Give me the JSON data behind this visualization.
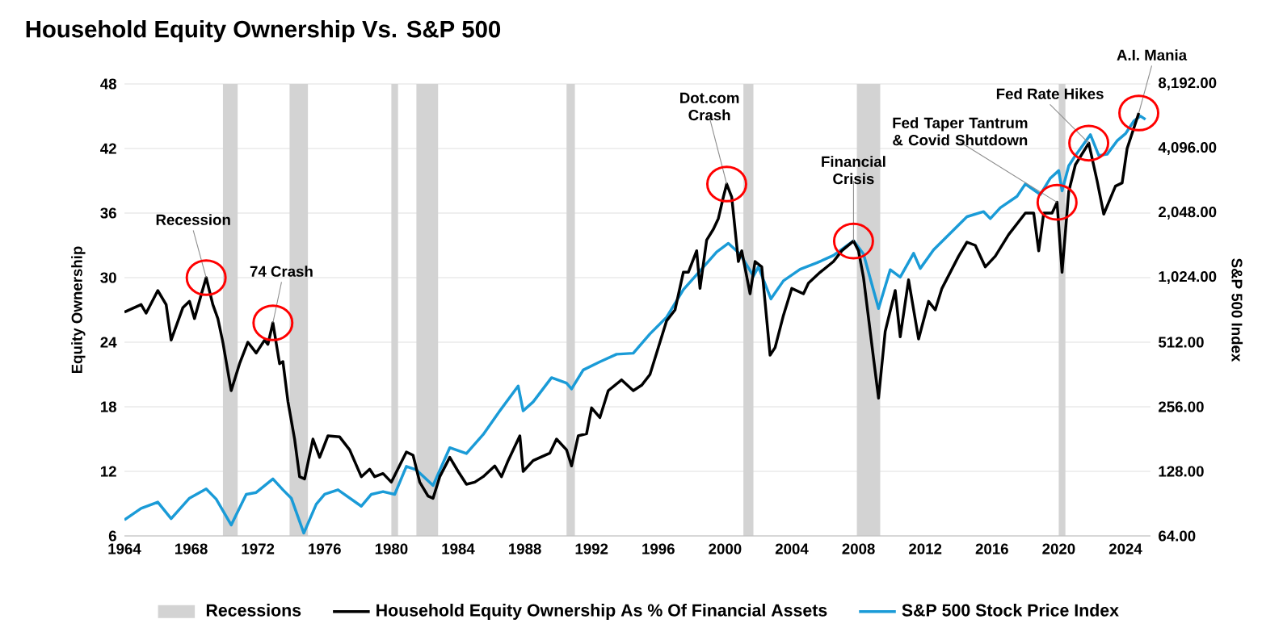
{
  "chart_data": {
    "type": "line",
    "title": "Household Equity Ownership Vs. S&P 500",
    "ylabel": "Equity Ownership",
    "y2label": "S&P 500 Index",
    "xlim": [
      1964,
      2025.5
    ],
    "xticks": [
      1964,
      1968,
      1972,
      1976,
      1980,
      1984,
      1988,
      1992,
      1996,
      2000,
      2004,
      2008,
      2012,
      2016,
      2020,
      2024
    ],
    "ylim": [
      6,
      48
    ],
    "yticks": [
      6,
      12,
      18,
      24,
      30,
      36,
      42,
      48
    ],
    "y2lim": [
      64,
      8192
    ],
    "y2ticks": [
      {
        "value": 64,
        "label": "64.00"
      },
      {
        "value": 128,
        "label": "128.00"
      },
      {
        "value": 256,
        "label": "256.00"
      },
      {
        "value": 512,
        "label": "512.00"
      },
      {
        "value": 1024,
        "label": "1,024.00"
      },
      {
        "value": 2048,
        "label": "2,048.00"
      },
      {
        "value": 4096,
        "label": "4,096.00"
      },
      {
        "value": 8192,
        "label": "8,192.00"
      }
    ],
    "log": "y2",
    "grid": "y",
    "legend": "bottom",
    "bands": [
      {
        "axis": "x",
        "from": 1969.9,
        "to": 1970.8,
        "label": "Recessions",
        "color": "#d3d3d3"
      },
      {
        "axis": "x",
        "from": 1973.9,
        "to": 1975.0,
        "color": "#d3d3d3"
      },
      {
        "axis": "x",
        "from": 1980.0,
        "to": 1980.4,
        "color": "#d3d3d3"
      },
      {
        "axis": "x",
        "from": 1981.5,
        "to": 1982.8,
        "color": "#d3d3d3"
      },
      {
        "axis": "x",
        "from": 1990.5,
        "to": 1991.0,
        "color": "#d3d3d3"
      },
      {
        "axis": "x",
        "from": 2001.1,
        "to": 2001.7,
        "color": "#d3d3d3"
      },
      {
        "axis": "x",
        "from": 2007.9,
        "to": 2009.3,
        "color": "#d3d3d3"
      },
      {
        "axis": "x",
        "from": 2020.0,
        "to": 2020.4,
        "color": "#d3d3d3"
      }
    ],
    "annotations": [
      {
        "text": "Recession",
        "x": 1968.9,
        "y": 30.0
      },
      {
        "text": "74 Crash",
        "x": 1972.9,
        "y": 25.8
      },
      {
        "text": "Dot.com Crash",
        "x": 2000.1,
        "y": 38.7
      },
      {
        "text": "Financial Crisis",
        "x": 2007.7,
        "y": 33.4
      },
      {
        "text": "Fed Taper Tantrum & Covid Shutdown",
        "x": 2019.9,
        "y": 37.0
      },
      {
        "text": "Fed Rate Hikes",
        "x": 2021.8,
        "y": 42.5
      },
      {
        "text": "A.I. Mania",
        "x": 2024.8,
        "y": 45.3
      }
    ],
    "series": [
      {
        "name": "S&P 500 Stock Price Index",
        "color": "#1a9bd7",
        "axis": "y2",
        "x": [
          1964.0,
          1965.0,
          1966.0,
          1966.8,
          1967.9,
          1968.9,
          1969.5,
          1970.4,
          1971.3,
          1971.9,
          1972.9,
          1973.5,
          1974.0,
          1974.75,
          1975.5,
          1976.0,
          1976.8,
          1978.2,
          1978.8,
          1979.5,
          1980.2,
          1980.9,
          1981.5,
          1982.5,
          1983.5,
          1984.5,
          1985.5,
          1986.5,
          1987.6,
          1987.9,
          1988.5,
          1989.6,
          1990.5,
          1990.8,
          1991.5,
          1992.5,
          1993.5,
          1994.5,
          1995.5,
          1996.5,
          1997.5,
          1998.5,
          1999.5,
          2000.2,
          2000.9,
          2001.7,
          2002.0,
          2002.75,
          2003.5,
          2004.5,
          2005.5,
          2006.5,
          2007.7,
          2008.3,
          2009.2,
          2009.9,
          2010.5,
          2011.3,
          2011.7,
          2012.5,
          2013.5,
          2014.5,
          2015.5,
          2015.9,
          2016.5,
          2017.5,
          2018.0,
          2018.9,
          2019.5,
          2020.0,
          2020.2,
          2020.6,
          2021.0,
          2021.9,
          2022.4,
          2022.9,
          2023.5,
          2024.0,
          2024.5,
          2024.9,
          2025.2
        ],
        "values": [
          76,
          86,
          92,
          77,
          96,
          106,
          95,
          72,
          100,
          102,
          118,
          105,
          96,
          66,
          90,
          100,
          105,
          88,
          100,
          103,
          100,
          135,
          130,
          110,
          165,
          155,
          190,
          245,
          320,
          245,
          270,
          350,
          330,
          310,
          380,
          415,
          450,
          455,
          560,
          670,
          900,
          1100,
          1350,
          1480,
          1320,
          1040,
          1150,
          815,
          990,
          1120,
          1200,
          1300,
          1520,
          1320,
          735,
          1115,
          1030,
          1330,
          1130,
          1380,
          1650,
          1970,
          2080,
          1930,
          2170,
          2450,
          2800,
          2500,
          2980,
          3230,
          2600,
          3400,
          3800,
          4750,
          3800,
          3850,
          4450,
          4800,
          5500,
          5800,
          5600
        ]
      },
      {
        "name": "Household Equity Ownership As % Of Financial Assets",
        "color": "#000000",
        "x": [
          1964.0,
          1965.0,
          1965.3,
          1966.0,
          1966.5,
          1966.8,
          1967.5,
          1967.9,
          1968.2,
          1968.6,
          1968.9,
          1969.3,
          1969.6,
          1969.9,
          1970.4,
          1970.9,
          1971.4,
          1971.9,
          1972.4,
          1972.6,
          1972.9,
          1973.3,
          1973.5,
          1973.8,
          1974.2,
          1974.5,
          1974.8,
          1975.3,
          1975.7,
          1976.2,
          1976.9,
          1977.5,
          1978.2,
          1978.7,
          1979.0,
          1979.5,
          1980.0,
          1980.9,
          1981.3,
          1981.7,
          1982.2,
          1982.5,
          1982.9,
          1983.5,
          1984.0,
          1984.5,
          1985.0,
          1985.5,
          1986.2,
          1986.6,
          1987.0,
          1987.7,
          1987.9,
          1988.5,
          1989.5,
          1989.9,
          1990.5,
          1990.8,
          1991.2,
          1991.7,
          1992.0,
          1992.5,
          1993.0,
          1993.8,
          1994.5,
          1995.0,
          1995.5,
          1996.5,
          1997.0,
          1997.5,
          1997.8,
          1998.3,
          1998.5,
          1998.9,
          1999.3,
          1999.6,
          1999.9,
          2000.1,
          2000.4,
          2000.8,
          2001.0,
          2001.5,
          2001.8,
          2002.2,
          2002.7,
          2003.0,
          2003.5,
          2004.0,
          2004.7,
          2005.0,
          2005.7,
          2006.5,
          2007.0,
          2007.7,
          2008.0,
          2008.3,
          2008.9,
          2009.2,
          2009.6,
          2010.2,
          2010.5,
          2011.0,
          2011.6,
          2012.2,
          2012.6,
          2013.0,
          2014.0,
          2014.5,
          2015.0,
          2015.6,
          2016.2,
          2017.0,
          2018.0,
          2018.5,
          2018.8,
          2019.1,
          2019.6,
          2019.9,
          2020.2,
          2020.6,
          2021.0,
          2021.8,
          2022.3,
          2022.7,
          2023.4,
          2023.8,
          2024.1,
          2024.8
        ],
        "values": [
          26.8,
          27.5,
          26.7,
          28.8,
          27.5,
          24.2,
          27.2,
          27.8,
          26.2,
          28.4,
          30.0,
          27.5,
          26.2,
          24.0,
          19.5,
          22.0,
          24.0,
          23.0,
          24.2,
          23.8,
          25.8,
          22.0,
          22.2,
          18.5,
          15.0,
          11.5,
          11.3,
          15.0,
          13.3,
          15.3,
          15.2,
          14.0,
          11.5,
          12.2,
          11.5,
          11.8,
          11.0,
          13.8,
          13.5,
          11.0,
          9.7,
          9.5,
          11.5,
          13.3,
          12.0,
          10.8,
          11.0,
          11.5,
          12.5,
          11.5,
          13.0,
          15.3,
          12.0,
          13.0,
          13.7,
          15.0,
          14.0,
          12.5,
          15.3,
          15.5,
          17.9,
          17.0,
          19.5,
          20.5,
          19.5,
          20.0,
          21.0,
          26.0,
          27.0,
          30.5,
          30.5,
          32.5,
          29.0,
          33.5,
          34.5,
          35.5,
          37.5,
          38.7,
          37.5,
          31.5,
          32.5,
          28.5,
          31.5,
          31.0,
          22.8,
          23.5,
          26.5,
          29.0,
          28.5,
          29.5,
          30.5,
          31.5,
          32.5,
          33.4,
          32.5,
          30.0,
          22.5,
          18.8,
          25.0,
          28.8,
          24.5,
          29.8,
          24.3,
          27.8,
          27.0,
          29.0,
          32.0,
          33.3,
          33.0,
          31.0,
          32.0,
          34.0,
          36.0,
          36.0,
          32.5,
          36.0,
          36.0,
          37.0,
          30.5,
          38.0,
          40.5,
          42.5,
          39.0,
          35.9,
          38.5,
          38.8,
          42.0,
          45.3
        ]
      }
    ]
  }
}
